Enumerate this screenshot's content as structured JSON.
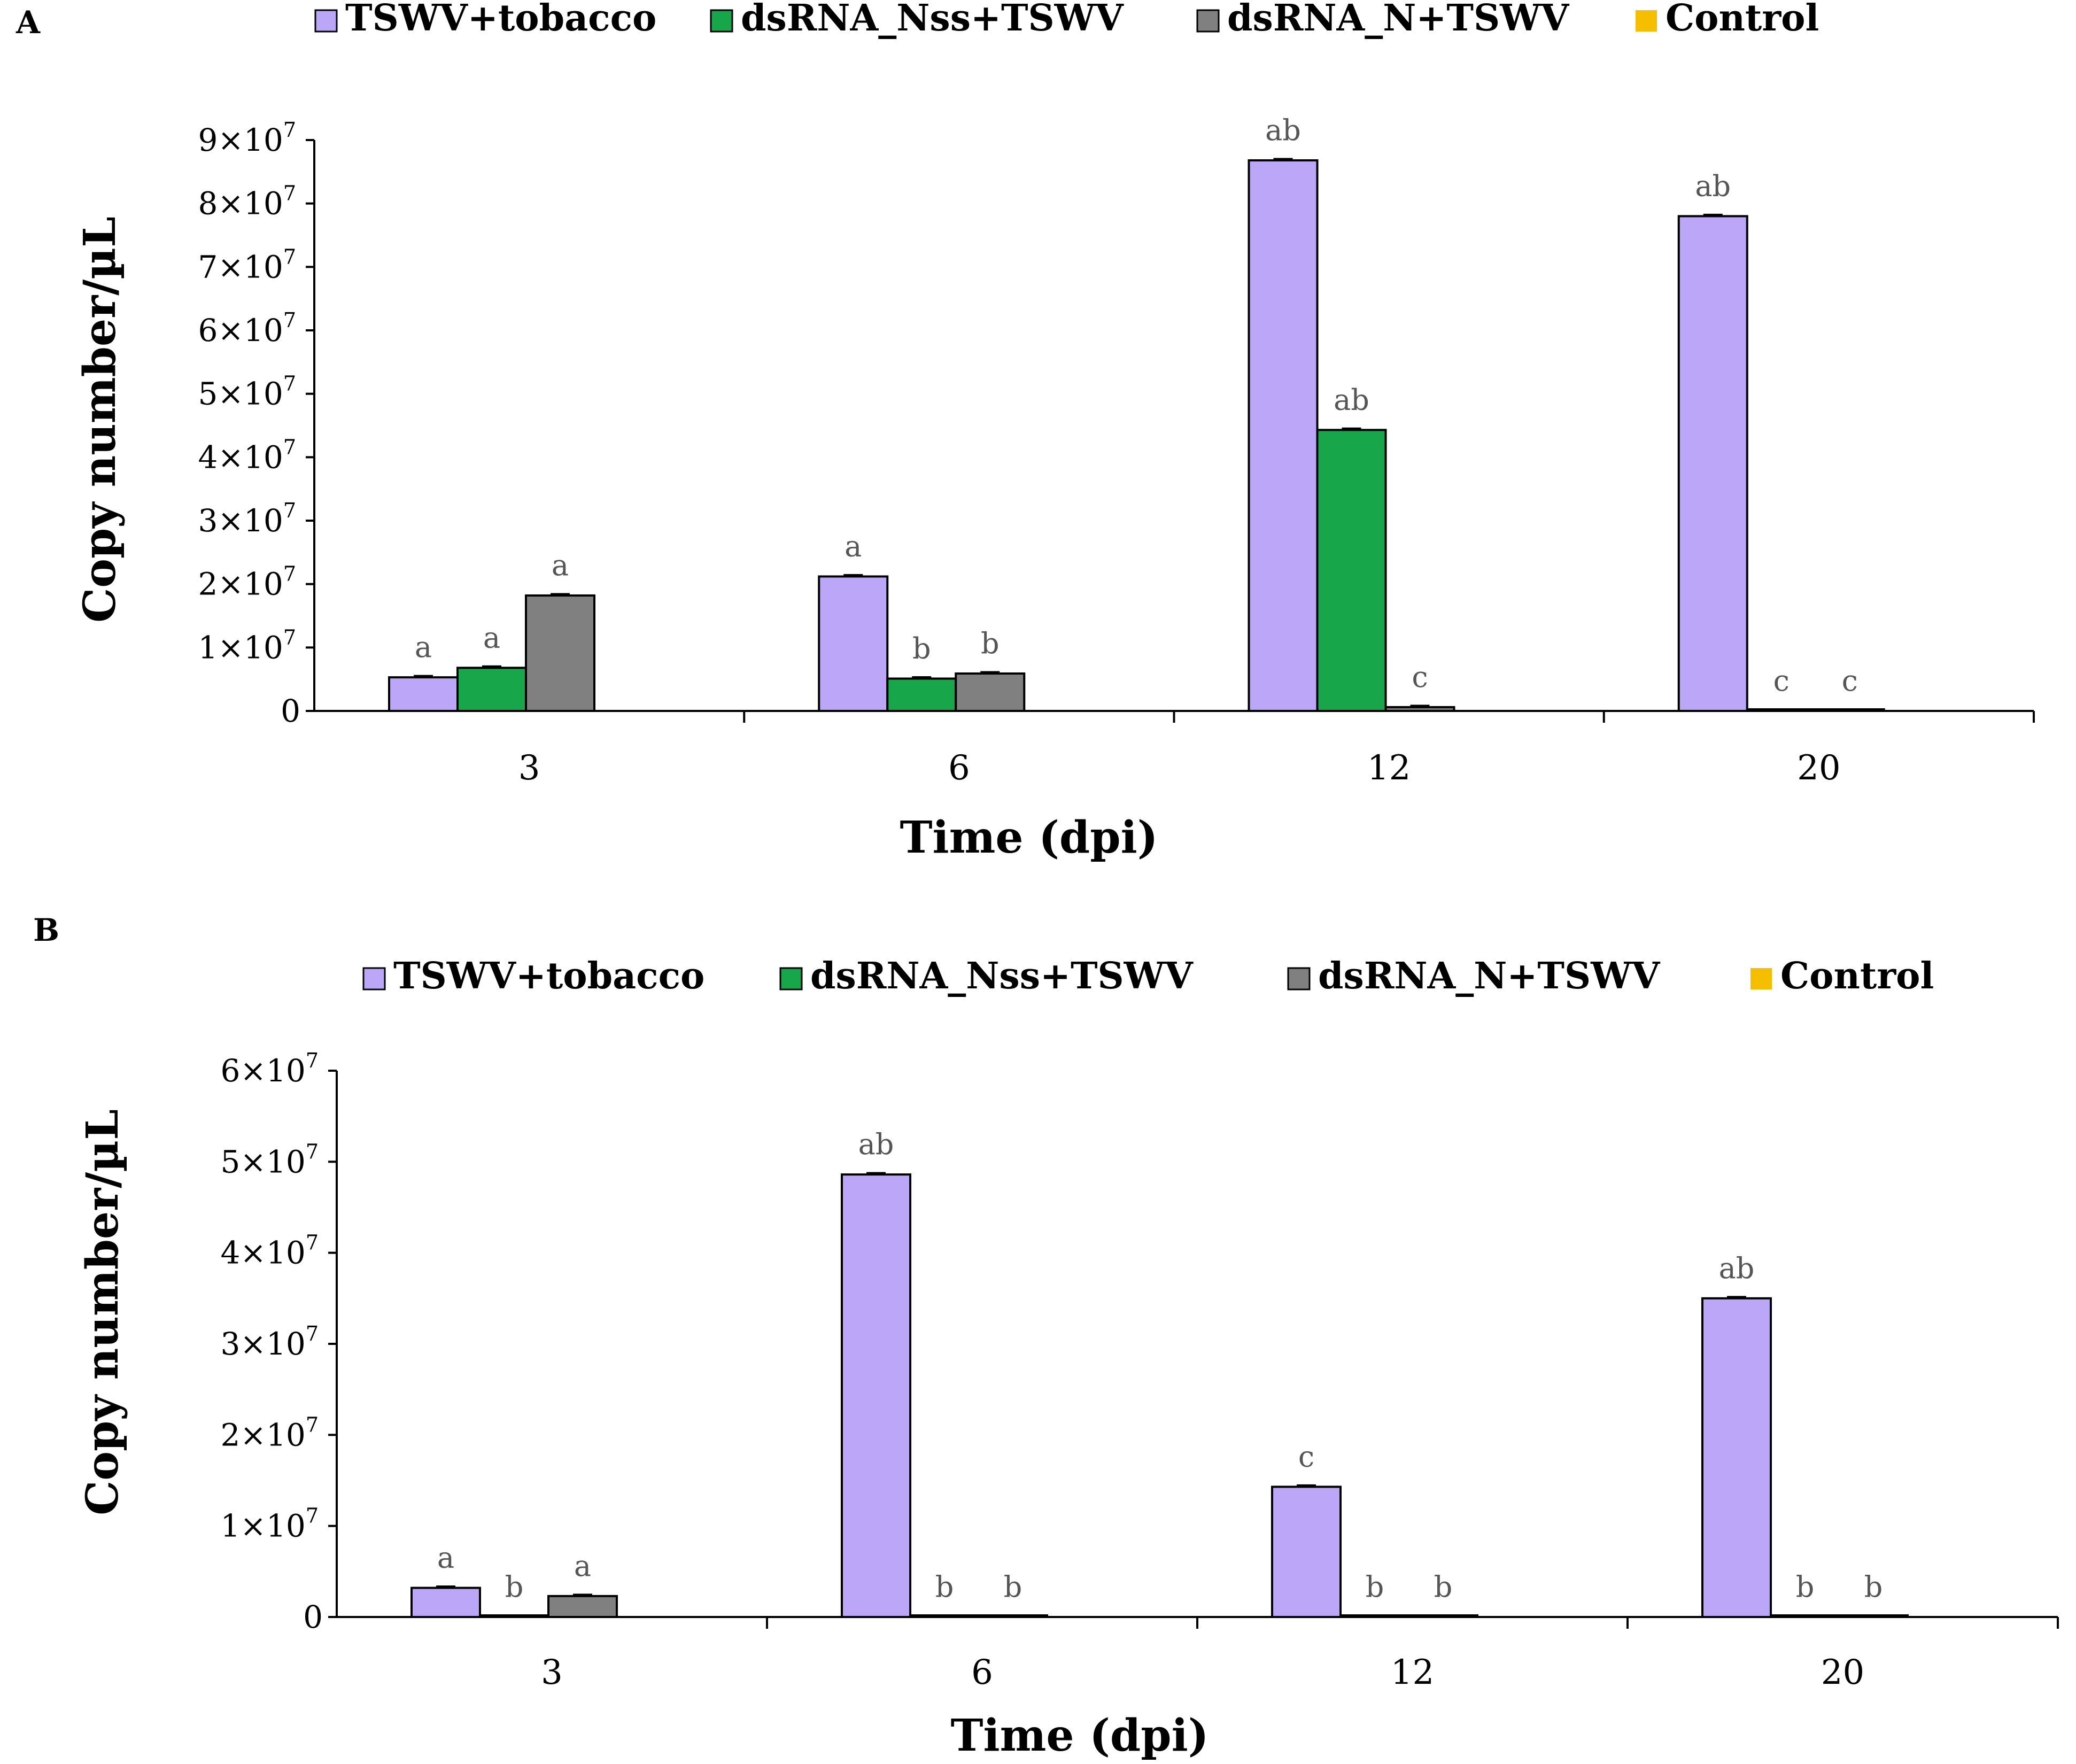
{
  "colors": {
    "tswv_tobacco": "#bba6f8",
    "dsrna_nss": "#17a64a",
    "dsrna_n": "#808080",
    "control": "#f5bf00"
  },
  "chart_data": [
    {
      "panel": "A",
      "type": "bar",
      "title": "",
      "xlabel": "Time (dpi)",
      "ylabel": "Copy number/µL",
      "categories": [
        "3",
        "6",
        "12",
        "20"
      ],
      "ylim": [
        0,
        90000000
      ],
      "yticks": [
        {
          "value": 0,
          "mantissa": "0",
          "exp": ""
        },
        {
          "value": 10000000,
          "mantissa": "1×10",
          "exp": "7"
        },
        {
          "value": 20000000,
          "mantissa": "2×10",
          "exp": "7"
        },
        {
          "value": 30000000,
          "mantissa": "3×10",
          "exp": "7"
        },
        {
          "value": 40000000,
          "mantissa": "4×10",
          "exp": "7"
        },
        {
          "value": 50000000,
          "mantissa": "5×10",
          "exp": "7"
        },
        {
          "value": 60000000,
          "mantissa": "6×10",
          "exp": "7"
        },
        {
          "value": 70000000,
          "mantissa": "7×10",
          "exp": "7"
        },
        {
          "value": 80000000,
          "mantissa": "8×10",
          "exp": "7"
        },
        {
          "value": 90000000,
          "mantissa": "9×10",
          "exp": "7"
        }
      ],
      "series": [
        {
          "name": "TSWV+tobacco",
          "color_key": "tswv_tobacco",
          "values": [
            5300000,
            21200000,
            86800000,
            78000000
          ],
          "labels": [
            "a",
            "a",
            "ab",
            "ab"
          ]
        },
        {
          "name": "dsRNA_Nss+TSWV",
          "color_key": "dsrna_nss",
          "values": [
            6800000,
            5100000,
            44300000,
            0
          ],
          "labels": [
            "a",
            "b",
            "ab",
            "c"
          ]
        },
        {
          "name": "dsRNA_N+TSWV",
          "color_key": "dsrna_n",
          "values": [
            18200000,
            5900000,
            600000,
            0
          ],
          "labels": [
            "a",
            "b",
            "c",
            "c"
          ]
        },
        {
          "name": "Control",
          "color_key": "control",
          "values": [
            0,
            0,
            0,
            0
          ],
          "labels": [
            "",
            "",
            "",
            ""
          ]
        }
      ]
    },
    {
      "panel": "B",
      "type": "bar",
      "title": "",
      "xlabel": "Time (dpi)",
      "ylabel": "Copy number/µL",
      "categories": [
        "3",
        "6",
        "12",
        "20"
      ],
      "ylim": [
        0,
        60000000
      ],
      "yticks": [
        {
          "value": 0,
          "mantissa": "0",
          "exp": ""
        },
        {
          "value": 10000000,
          "mantissa": "1×10",
          "exp": "7"
        },
        {
          "value": 20000000,
          "mantissa": "2×10",
          "exp": "7"
        },
        {
          "value": 30000000,
          "mantissa": "3×10",
          "exp": "7"
        },
        {
          "value": 40000000,
          "mantissa": "4×10",
          "exp": "7"
        },
        {
          "value": 50000000,
          "mantissa": "5×10",
          "exp": "7"
        },
        {
          "value": 60000000,
          "mantissa": "6×10",
          "exp": "7"
        }
      ],
      "series": [
        {
          "name": "TSWV+tobacco",
          "color_key": "tswv_tobacco",
          "values": [
            3200000,
            48600000,
            14300000,
            35000000
          ],
          "labels": [
            "a",
            "ab",
            "c",
            "ab"
          ]
        },
        {
          "name": "dsRNA_Nss+TSWV",
          "color_key": "dsrna_nss",
          "values": [
            0,
            0,
            0,
            0
          ],
          "labels": [
            "b",
            "b",
            "b",
            "b"
          ]
        },
        {
          "name": "dsRNA_N+TSWV",
          "color_key": "dsrna_n",
          "values": [
            2300000,
            0,
            0,
            0
          ],
          "labels": [
            "a",
            "b",
            "b",
            "b"
          ]
        },
        {
          "name": "Control",
          "color_key": "control",
          "values": [
            0,
            0,
            0,
            0
          ],
          "labels": [
            "",
            "",
            "",
            ""
          ]
        }
      ]
    }
  ]
}
